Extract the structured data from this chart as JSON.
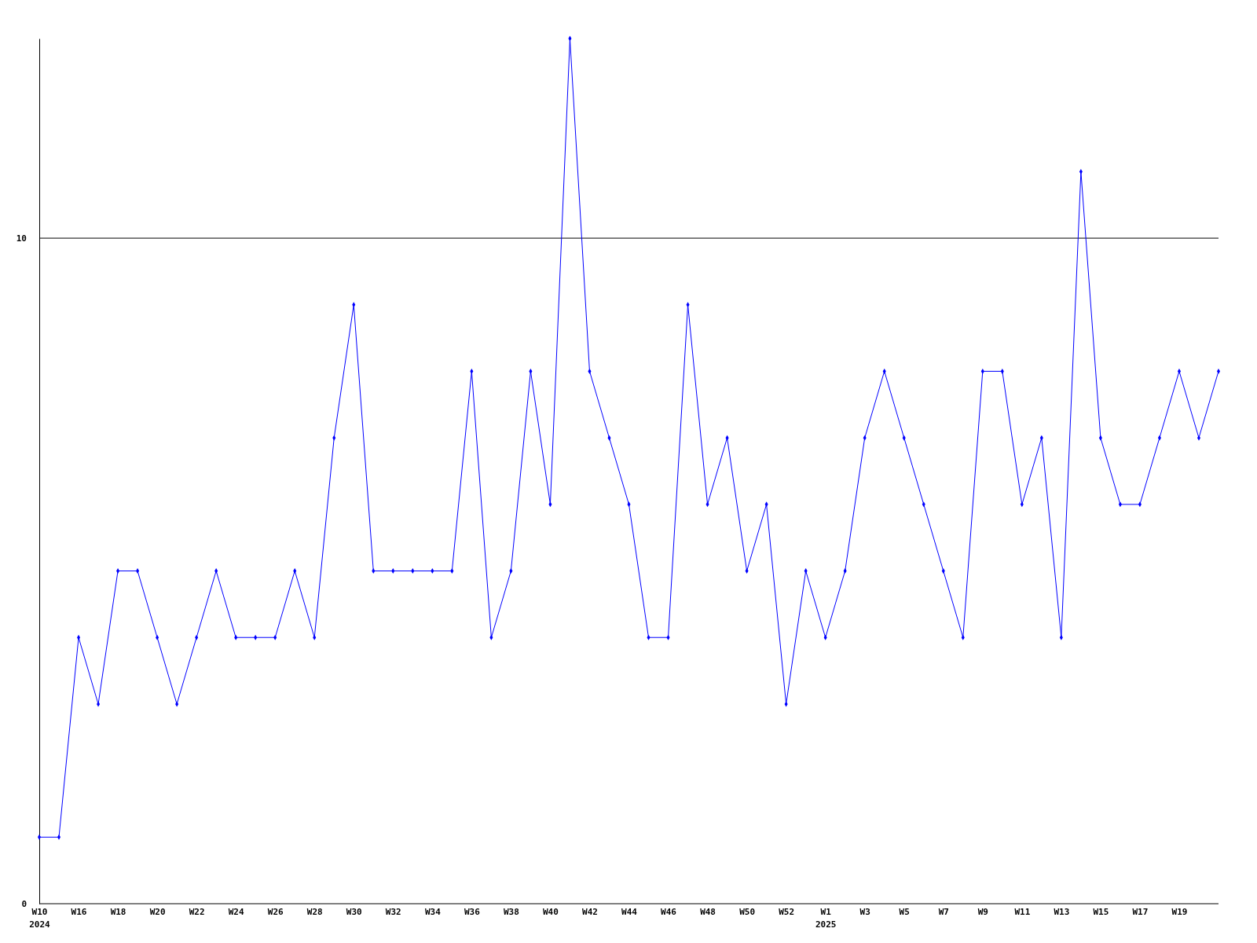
{
  "chart_data": {
    "type": "line",
    "categories": [
      "W10\n2024",
      null,
      "W16",
      null,
      "W18",
      null,
      "W20",
      null,
      "W22",
      null,
      "W24",
      null,
      "W26",
      null,
      "W28",
      null,
      "W30",
      null,
      "W32",
      null,
      "W34",
      null,
      "W36",
      null,
      "W38",
      null,
      "W40",
      null,
      "W42",
      null,
      "W44",
      null,
      "W46",
      null,
      "W48",
      null,
      "W50",
      null,
      "W52",
      null,
      "W1\n2025",
      null,
      "W3",
      null,
      "W5",
      null,
      "W7",
      null,
      "W9",
      null,
      "W11",
      null,
      "W13",
      null,
      "W15",
      null,
      "W17",
      null,
      "W19",
      null,
      null
    ],
    "series": [
      {
        "color": "#0000ff",
        "values": [
          1,
          1,
          4,
          3,
          5,
          5,
          4,
          3,
          4,
          5,
          4,
          4,
          4,
          5,
          4,
          7,
          9,
          5,
          5,
          5,
          5,
          5,
          8,
          4,
          5,
          8,
          6,
          13,
          8,
          7,
          6,
          4,
          4,
          9,
          6,
          7,
          5,
          6,
          3,
          5,
          4,
          5,
          7,
          8,
          7,
          6,
          5,
          4,
          8,
          8,
          6,
          7,
          4,
          11,
          7,
          6,
          6,
          7,
          8,
          7,
          8
        ]
      }
    ],
    "ylim": [
      0,
      13
    ],
    "yticks": [
      0,
      10
    ],
    "grid": "y",
    "marker": "diamond",
    "line_style": "solid"
  }
}
